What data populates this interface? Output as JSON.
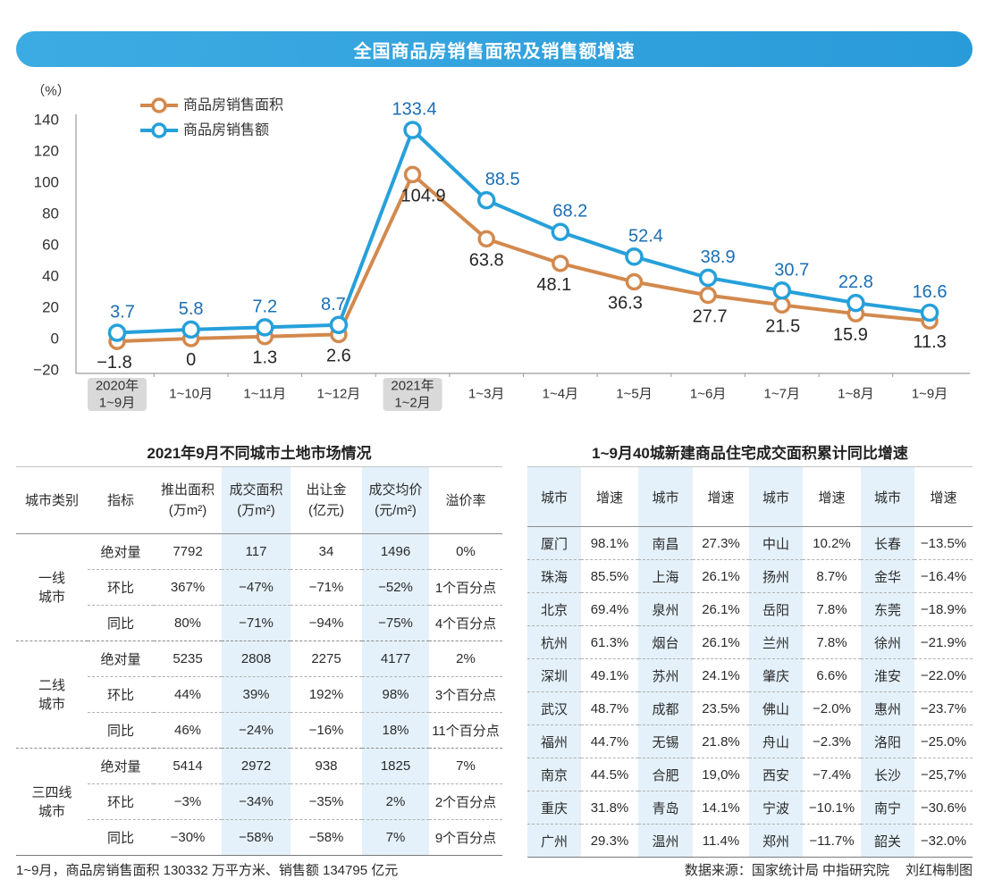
{
  "chart_data": {
    "type": "line",
    "title": "全国商品房销售面积及销售额增速",
    "ylabel": "（%）",
    "ylim": [
      -20,
      140
    ],
    "yticks": [
      140,
      120,
      100,
      80,
      60,
      40,
      20,
      0,
      -20
    ],
    "ytick_labels": [
      "140",
      "120",
      "100",
      "80",
      "60",
      "40",
      "20",
      "0",
      "−20"
    ],
    "categories": [
      [
        "2020年",
        "1~9月"
      ],
      [
        "1~10月"
      ],
      [
        "1~11月"
      ],
      [
        "1~12月"
      ],
      [
        "2021年",
        "1~2月"
      ],
      [
        "1~3月"
      ],
      [
        "1~4月"
      ],
      [
        "1~5月"
      ],
      [
        "1~6月"
      ],
      [
        "1~7月"
      ],
      [
        "1~8月"
      ],
      [
        "1~9月"
      ]
    ],
    "highlighted_categories": [
      0,
      4
    ],
    "grid": false,
    "legend_position": "top-left",
    "series": [
      {
        "name": "商品房销售面积",
        "color": "#d3894d",
        "label_color": "#262626",
        "values": [
          -1.8,
          0,
          1.3,
          2.6,
          104.9,
          63.8,
          48.1,
          36.3,
          27.7,
          21.5,
          15.9,
          11.3
        ],
        "labels": [
          "−1.8",
          "0",
          "1.3",
          "2.6",
          "104.9",
          "63.8",
          "48.1",
          "36.3",
          "27.7",
          "21.5",
          "15.9",
          "11.3"
        ]
      },
      {
        "name": "商品房销售额",
        "color": "#26a0da",
        "label_color": "#1a6eb6",
        "values": [
          3.7,
          5.8,
          7.2,
          8.7,
          133.4,
          88.5,
          68.2,
          52.4,
          38.9,
          30.7,
          22.8,
          16.6
        ],
        "labels": [
          "3.7",
          "5.8",
          "7.2",
          "8.7",
          "133.4",
          "88.5",
          "68.2",
          "52.4",
          "38.9",
          "30.7",
          "22.8",
          "16.6"
        ]
      }
    ]
  },
  "land_table": {
    "title": "2021年9月不同城市土地市场情况",
    "headers": [
      [
        "城市类别"
      ],
      [
        "指标"
      ],
      [
        "推出面积",
        "(万m²)"
      ],
      [
        "成交面积",
        "(万m²)"
      ],
      [
        "出让金",
        "(亿元)"
      ],
      [
        "成交均价",
        "(元/m²)"
      ],
      [
        "溢价率"
      ]
    ],
    "groups": [
      {
        "category": [
          "一线",
          "城市"
        ],
        "rows": [
          {
            "metric": "绝对量",
            "values": [
              "7792",
              "117",
              "34",
              "1496",
              "0%"
            ]
          },
          {
            "metric": "环比",
            "values": [
              "367%",
              "−47%",
              "−71%",
              "−52%",
              "1个百分点"
            ]
          },
          {
            "metric": "同比",
            "values": [
              "80%",
              "−71%",
              "−94%",
              "−75%",
              "4个百分点"
            ]
          }
        ]
      },
      {
        "category": [
          "二线",
          "城市"
        ],
        "rows": [
          {
            "metric": "绝对量",
            "values": [
              "5235",
              "2808",
              "2275",
              "4177",
              "2%"
            ]
          },
          {
            "metric": "环比",
            "values": [
              "44%",
              "39%",
              "192%",
              "98%",
              "3个百分点"
            ]
          },
          {
            "metric": "同比",
            "values": [
              "46%",
              "−24%",
              "−16%",
              "18%",
              "11个百分点"
            ]
          }
        ]
      },
      {
        "category": [
          "三四线",
          "城市"
        ],
        "rows": [
          {
            "metric": "绝对量",
            "values": [
              "5414",
              "2972",
              "938",
              "1825",
              "7%"
            ]
          },
          {
            "metric": "环比",
            "values": [
              "−3%",
              "−34%",
              "−35%",
              "2%",
              "2个百分点"
            ]
          },
          {
            "metric": "同比",
            "values": [
              "−30%",
              "−58%",
              "−58%",
              "7%",
              "9个百分点"
            ]
          }
        ]
      }
    ]
  },
  "city_table": {
    "title": "1~9月40城新建商品住宅成交面积累计同比增速",
    "headers": [
      "城市",
      "增速",
      "城市",
      "增速",
      "城市",
      "增速",
      "城市",
      "增速"
    ],
    "rows": [
      [
        "厦门",
        "98.1%",
        "南昌",
        "27.3%",
        "中山",
        "10.2%",
        "长春",
        "−13.5%"
      ],
      [
        "珠海",
        "85.5%",
        "上海",
        "26.1%",
        "扬州",
        "8.7%",
        "金华",
        "−16.4%"
      ],
      [
        "北京",
        "69.4%",
        "泉州",
        "26.1%",
        "岳阳",
        "7.8%",
        "东莞",
        "−18.9%"
      ],
      [
        "杭州",
        "61.3%",
        "烟台",
        "26.1%",
        "兰州",
        "7.8%",
        "徐州",
        "−21.9%"
      ],
      [
        "深圳",
        "49.1%",
        "苏州",
        "24.1%",
        "肇庆",
        "6.6%",
        "淮安",
        "−22.0%"
      ],
      [
        "武汉",
        "48.7%",
        "成都",
        "23.5%",
        "佛山",
        "−2.0%",
        "惠州",
        "−23.7%"
      ],
      [
        "福州",
        "44.7%",
        "无锡",
        "21.8%",
        "舟山",
        "−2.3%",
        "洛阳",
        "−25.0%"
      ],
      [
        "南京",
        "44.5%",
        "合肥",
        "19,0%",
        "西安",
        "−7.4%",
        "长沙",
        "−25,7%"
      ],
      [
        "重庆",
        "31.8%",
        "青岛",
        "14.1%",
        "宁波",
        "−10.1%",
        "南宁",
        "−30.6%"
      ],
      [
        "广州",
        "29.3%",
        "温州",
        "11.4%",
        "郑州",
        "−11.7%",
        "韶关",
        "−32.0%"
      ]
    ]
  },
  "footer": {
    "note": "1~9月，商品房销售面积 130332 万平方米、销售额 134795 亿元",
    "source": "数据来源：国家统计局 中指研究院",
    "credit": "刘红梅制图"
  }
}
